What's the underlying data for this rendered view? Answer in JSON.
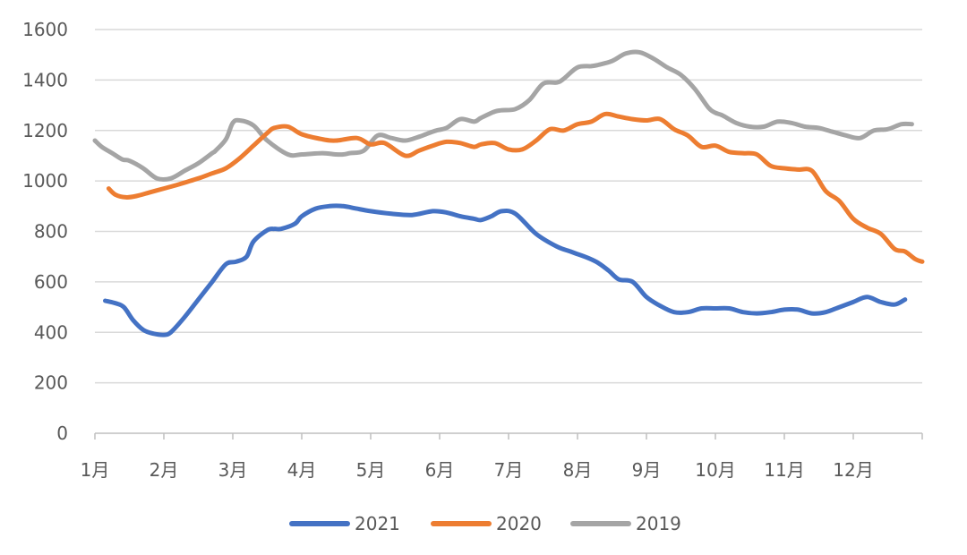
{
  "chart_data": {
    "type": "line",
    "title": "",
    "xlabel": "",
    "ylabel": "",
    "ylim": [
      0,
      1600
    ],
    "yticks": [
      0,
      200,
      400,
      600,
      800,
      1000,
      1200,
      1400,
      1600
    ],
    "xlim": [
      0,
      12
    ],
    "categories": [
      "1月",
      "2月",
      "3月",
      "4月",
      "5月",
      "6月",
      "7月",
      "8月",
      "9月",
      "10月",
      "11月",
      "12月"
    ],
    "grid": "horizontal",
    "legend": "bottom",
    "series": [
      {
        "name": "2021",
        "color": "#4472C4",
        "x": [
          0.15,
          0.3,
          0.42,
          0.55,
          0.7,
          0.85,
          1.0,
          1.1,
          1.3,
          1.5,
          1.7,
          1.9,
          2.05,
          2.2,
          2.3,
          2.5,
          2.6,
          2.7,
          2.9,
          3.0,
          3.2,
          3.4,
          3.6,
          3.8,
          4.0,
          4.3,
          4.6,
          4.9,
          5.1,
          5.3,
          5.5,
          5.6,
          5.75,
          5.9,
          6.1,
          6.4,
          6.7,
          6.9,
          7.0,
          7.15,
          7.3,
          7.45,
          7.6,
          7.8,
          8.0,
          8.2,
          8.4,
          8.6,
          8.8,
          9.0,
          9.2,
          9.4,
          9.6,
          9.8,
          10.0,
          10.2,
          10.4,
          10.6,
          10.8,
          11.0,
          11.2,
          11.4,
          11.6,
          11.75
        ],
        "values": [
          525,
          515,
          500,
          450,
          410,
          395,
          390,
          400,
          460,
          530,
          600,
          670,
          680,
          700,
          760,
          805,
          810,
          810,
          830,
          860,
          890,
          900,
          900,
          890,
          880,
          870,
          865,
          880,
          875,
          860,
          850,
          845,
          860,
          880,
          870,
          790,
          740,
          720,
          710,
          695,
          675,
          645,
          610,
          600,
          540,
          505,
          480,
          480,
          495,
          495,
          495,
          480,
          475,
          480,
          490,
          490,
          475,
          480,
          500,
          520,
          540,
          520,
          510,
          530
        ]
      },
      {
        "name": "2020",
        "color": "#ED7D31",
        "x": [
          0.2,
          0.3,
          0.45,
          0.6,
          0.8,
          1.0,
          1.2,
          1.5,
          1.7,
          1.9,
          2.1,
          2.3,
          2.5,
          2.6,
          2.8,
          3.0,
          3.3,
          3.5,
          3.8,
          4.0,
          4.2,
          4.5,
          4.7,
          4.9,
          5.1,
          5.3,
          5.5,
          5.6,
          5.8,
          6.0,
          6.2,
          6.4,
          6.6,
          6.8,
          7.0,
          7.2,
          7.4,
          7.6,
          7.8,
          8.0,
          8.2,
          8.4,
          8.6,
          8.8,
          9.0,
          9.2,
          9.4,
          9.6,
          9.8,
          10.0,
          10.2,
          10.4,
          10.6,
          10.8,
          11.0,
          11.2,
          11.4,
          11.6,
          11.75,
          11.9,
          12.0
        ],
        "values": [
          970,
          945,
          935,
          940,
          955,
          970,
          985,
          1010,
          1030,
          1050,
          1090,
          1140,
          1190,
          1210,
          1215,
          1185,
          1165,
          1160,
          1170,
          1145,
          1150,
          1100,
          1120,
          1140,
          1155,
          1150,
          1135,
          1145,
          1150,
          1125,
          1125,
          1160,
          1205,
          1200,
          1225,
          1235,
          1265,
          1255,
          1245,
          1240,
          1245,
          1205,
          1180,
          1135,
          1140,
          1115,
          1110,
          1105,
          1060,
          1050,
          1045,
          1040,
          960,
          920,
          850,
          815,
          790,
          730,
          720,
          690,
          680
        ]
      },
      {
        "name": "2019",
        "color": "#A5A5A5",
        "x": [
          0.0,
          0.1,
          0.25,
          0.4,
          0.5,
          0.7,
          0.9,
          1.1,
          1.3,
          1.5,
          1.7,
          1.75,
          1.9,
          2.0,
          2.1,
          2.3,
          2.5,
          2.8,
          3.0,
          3.3,
          3.5,
          3.6,
          3.7,
          3.9,
          4.1,
          4.3,
          4.5,
          4.7,
          4.8,
          4.95,
          5.1,
          5.3,
          5.5,
          5.6,
          5.8,
          5.9,
          6.1,
          6.3,
          6.5,
          6.7,
          6.8,
          7.0,
          7.2,
          7.3,
          7.5,
          7.7,
          7.9,
          8.1,
          8.3,
          8.5,
          8.7,
          8.9,
          9.0,
          9.1,
          9.3,
          9.5,
          9.7,
          9.9,
          10.1,
          10.3,
          10.5,
          10.7,
          10.9,
          11.1,
          11.3,
          11.5,
          11.7,
          11.85
        ],
        "values": [
          1160,
          1135,
          1110,
          1085,
          1080,
          1050,
          1010,
          1010,
          1040,
          1070,
          1110,
          1120,
          1165,
          1230,
          1240,
          1220,
          1160,
          1105,
          1105,
          1110,
          1105,
          1105,
          1110,
          1120,
          1180,
          1170,
          1160,
          1175,
          1185,
          1200,
          1210,
          1245,
          1235,
          1250,
          1275,
          1280,
          1285,
          1320,
          1385,
          1390,
          1405,
          1450,
          1455,
          1460,
          1475,
          1505,
          1510,
          1485,
          1450,
          1420,
          1365,
          1290,
          1270,
          1260,
          1230,
          1215,
          1215,
          1235,
          1230,
          1215,
          1210,
          1195,
          1180,
          1170,
          1200,
          1205,
          1225,
          1225
        ]
      }
    ]
  }
}
